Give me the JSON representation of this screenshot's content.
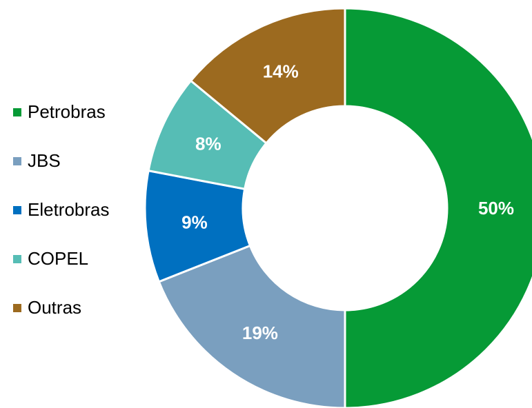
{
  "chart_data": {
    "type": "donut",
    "categories": [
      "Petrobras",
      "JBS",
      "Eletrobras",
      "COPEL",
      "Outras"
    ],
    "values": [
      50,
      19,
      9,
      8,
      14
    ],
    "value_labels": [
      "50%",
      "19%",
      "9%",
      "8%",
      "14%"
    ],
    "colors": [
      "#069a36",
      "#7a9fbf",
      "#0070c0",
      "#56bdb5",
      "#9c6a1f"
    ],
    "legend": "left"
  }
}
